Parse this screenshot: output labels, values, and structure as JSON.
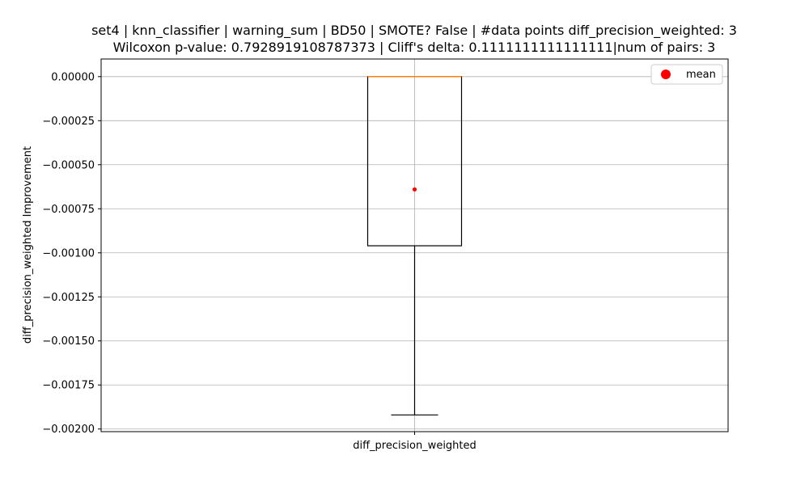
{
  "chart_data": {
    "type": "box",
    "title_line1": "set4 | knn_classifier | warning_sum | BD50 | SMOTE? False | #data points diff_precision_weighted: 3",
    "title_line2": "Wilcoxon p-value: 0.7928919108787373 | Cliff's delta: 0.1111111111111111|num of pairs: 3",
    "xlabel": "",
    "ylabel": "diff_precision_weighted Improvement",
    "categories": [
      "diff_precision_weighted"
    ],
    "ylim": [
      -0.002015,
      0.0001
    ],
    "yticks": [
      0.0,
      -0.00025,
      -0.0005,
      -0.00075,
      -0.001,
      -0.00125,
      -0.0015,
      -0.00175,
      -0.002
    ],
    "ytick_labels": [
      "0.00000",
      "−0.00025",
      "−0.00050",
      "−0.00075",
      "−0.00100",
      "−0.00125",
      "−0.00150",
      "−0.00175",
      "−0.00200"
    ],
    "box": {
      "whisker_low": -0.00192,
      "q1": -0.00096,
      "median": 0.0,
      "q3": 0.0,
      "whisker_high": 0.0,
      "mean": -0.00064
    },
    "grid": true,
    "legend": {
      "position": "top-right",
      "entries": [
        {
          "label": "mean",
          "marker": "circle",
          "color": "#ff0000"
        }
      ]
    },
    "colors": {
      "box": "#000000",
      "median": "#ff7f0e",
      "mean": "#ff0000",
      "grid": "#b0b0b0"
    }
  }
}
